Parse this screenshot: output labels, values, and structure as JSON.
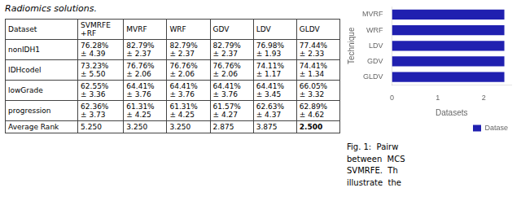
{
  "chart_data": {
    "type": "bar",
    "orientation": "horizontal",
    "title": "Radiomics solutions.",
    "categories": [
      "MVRF",
      "WRF",
      "LDV",
      "GDV",
      "GLDV"
    ],
    "series": [
      {
        "name": "Datase",
        "color": "#2020b0",
        "values": [
          2.45,
          2.45,
          2.45,
          2.45,
          2.45
        ]
      }
    ],
    "xlabel": "Datasets",
    "ylabel": "Technique",
    "xlim": [
      0,
      2.6
    ],
    "xticks": [
      0,
      1,
      2
    ],
    "grid": false,
    "legend": "lower right",
    "table": {
      "headers": [
        "Dataset",
        "SVMRFE\n+RF",
        "MVRF",
        "WRF",
        "GDV",
        "LDV",
        "GLDV"
      ],
      "rows": [
        [
          "nonIDH1",
          "76.28%\n± 4.39",
          "82.79%\n± 2.37",
          "82.79%\n± 2.37",
          "82.79%\n± 2.37",
          "76.98%\n± 1.93",
          "77.44%\n± 2.33"
        ],
        [
          "IDHcodel",
          "73.23%\n± 5.50",
          "76.76%\n± 2.06",
          "76.76%\n± 2.06",
          "76.76%\n± 2.06",
          "74.11%\n± 1.17",
          "74.41%\n± 1.34"
        ],
        [
          "lowGrade",
          "62.55%\n± 3.36",
          "64.41%\n± 3.76",
          "64.41%\n± 3.76",
          "64.41%\n± 3.76",
          "64.41%\n± 3.45",
          "66.05%\n± 3.32"
        ],
        [
          "progression",
          "62.36%\n± 3.73",
          "61.31%\n± 4.25",
          "61.31%\n± 4.25",
          "61.57%\n± 4.27",
          "62.63%\n± 4.37",
          "62.89%\n± 4.62"
        ],
        [
          "Average Rank",
          "5.250",
          "3.250",
          "3.250",
          "2.875",
          "3.875",
          "2.500"
        ]
      ]
    },
    "annotations": [
      "Fig. 1:  Pairw\nbetween  MCS\nSVMRFE.  Th\nillustrate  the"
    ]
  }
}
